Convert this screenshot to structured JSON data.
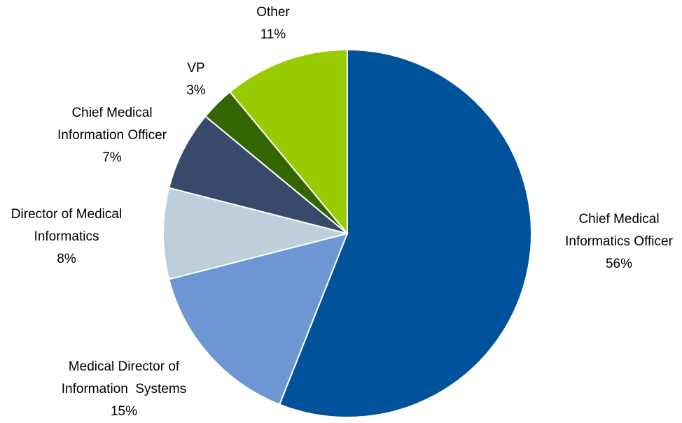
{
  "chart_data": {
    "type": "pie",
    "categories": [
      "Chief Medical\nInformatics Officer",
      "Medical Director of\nInformation  Systems",
      "Director of Medical\nInformatics",
      "Chief Medical\nInformation Officer",
      "VP",
      "Other"
    ],
    "values": [
      56,
      15,
      8,
      7,
      3,
      11
    ],
    "value_labels": [
      "56%",
      "15%",
      "8%",
      "7%",
      "3%",
      "11%"
    ],
    "colors": [
      "#00529b",
      "#6f96d4",
      "#bccfdb",
      "#374a6b",
      "#336600",
      "#99cc00"
    ]
  }
}
